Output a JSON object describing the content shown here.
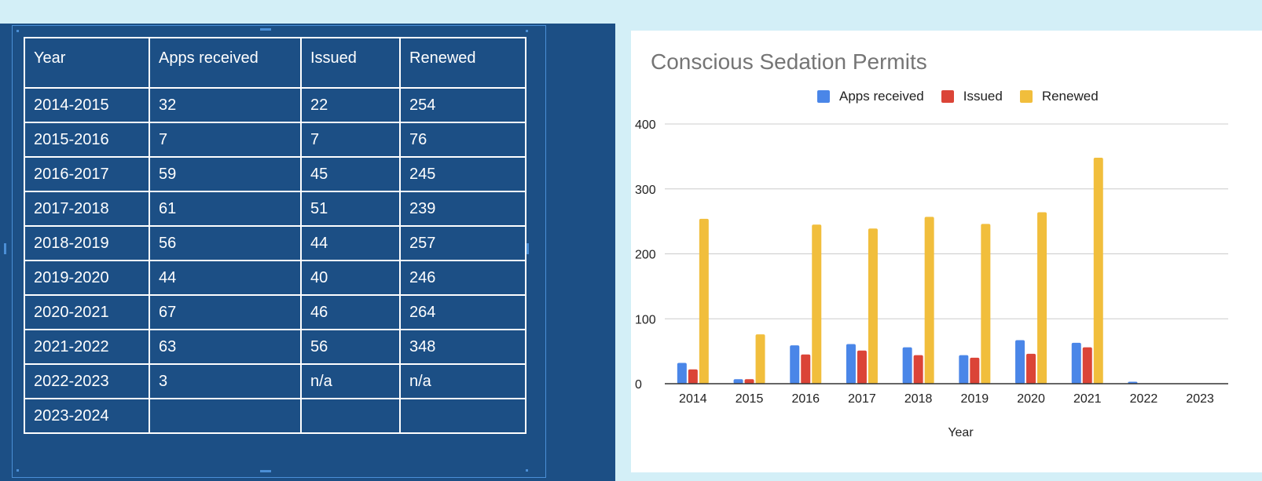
{
  "table": {
    "headers": [
      "Year",
      "Apps received",
      "Issued",
      "Renewed"
    ],
    "rows": [
      [
        "2014-2015",
        "32",
        "22",
        "254"
      ],
      [
        "2015-2016",
        "7",
        "7",
        "76"
      ],
      [
        "2016-2017",
        "59",
        "45",
        "245"
      ],
      [
        "2017-2018",
        "61",
        "51",
        "239"
      ],
      [
        "2018-2019",
        "56",
        "44",
        "257"
      ],
      [
        "2019-2020",
        "44",
        "40",
        "246"
      ],
      [
        "2020-2021",
        "67",
        "46",
        "264"
      ],
      [
        "2021-2022",
        "63",
        "56",
        "348"
      ],
      [
        "2022-2023",
        "3",
        "n/a",
        "n/a"
      ],
      [
        "2023-2024",
        "",
        "",
        ""
      ]
    ]
  },
  "colors": {
    "apps": "#4a86e8",
    "issued": "#db4437",
    "renewed": "#f1be3c",
    "gridline": "#cccccc",
    "table_bg": "#1c4f85"
  },
  "chart_data": {
    "type": "bar",
    "title": "Conscious Sedation Permits",
    "xlabel": "Year",
    "ylabel": "",
    "ylim": [
      0,
      400
    ],
    "yticks": [
      0,
      100,
      200,
      300,
      400
    ],
    "legend_position": "top",
    "categories": [
      "2014",
      "2015",
      "2016",
      "2017",
      "2018",
      "2019",
      "2020",
      "2021",
      "2022",
      "2023"
    ],
    "series": [
      {
        "name": "Apps received",
        "values": [
          32,
          7,
          59,
          61,
          56,
          44,
          67,
          63,
          3,
          null
        ]
      },
      {
        "name": "Issued",
        "values": [
          22,
          7,
          45,
          51,
          44,
          40,
          46,
          56,
          null,
          null
        ]
      },
      {
        "name": "Renewed",
        "values": [
          254,
          76,
          245,
          239,
          257,
          246,
          264,
          348,
          null,
          null
        ]
      }
    ]
  }
}
